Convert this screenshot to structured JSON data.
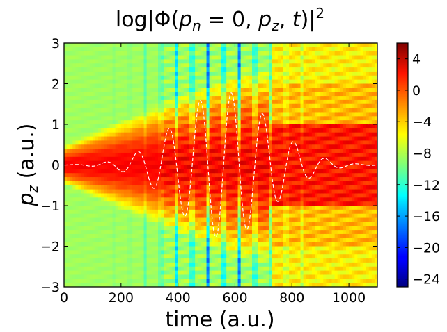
{
  "chart_data": {
    "type": "heatmap",
    "title": "log|Φ(p_n = 0, p_z, t)|²",
    "xlabel": "time (a.u.)",
    "ylabel": "p_z (a.u.)",
    "xlim": [
      0,
      1100
    ],
    "ylim": [
      -3,
      3
    ],
    "x_ticks": [
      "0",
      "200",
      "400",
      "600",
      "800",
      "1000"
    ],
    "y_ticks": [
      "−3",
      "−2",
      "−1",
      "0",
      "1",
      "2",
      "3"
    ],
    "colorbar": {
      "colormap": "jet",
      "range": [
        -25,
        6
      ],
      "ticks": [
        "4",
        "0",
        "−4",
        "−8",
        "−12",
        "−16",
        "−20",
        "−24"
      ],
      "tick_values": [
        4,
        0,
        -4,
        -8,
        -12,
        -16,
        -20,
        -24
      ]
    },
    "overlay_line": {
      "style": "dashed",
      "color": "#ffffff",
      "description_values": {
        "center_time": 560,
        "period": 110,
        "peak_amplitude_pz": 1.8
      }
    }
  },
  "colors": {
    "dashed_line": "#ffffff",
    "axes": "#000000"
  }
}
